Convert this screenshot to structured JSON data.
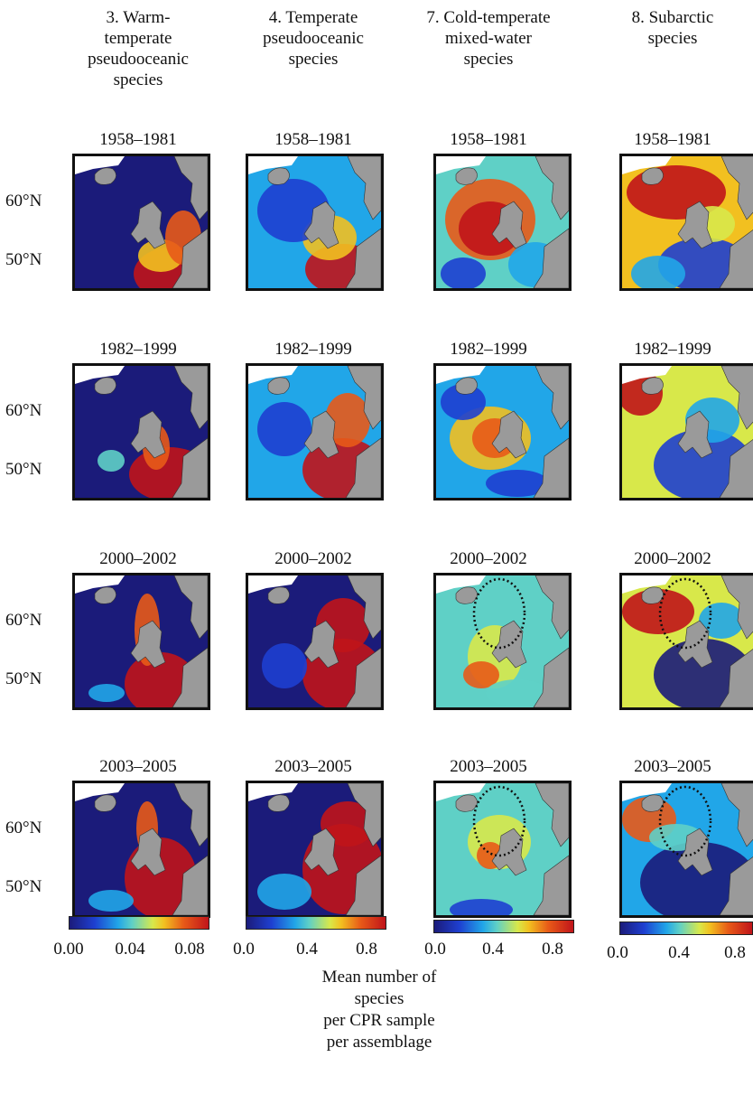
{
  "columns": [
    {
      "header": "3. Warm-\ntemperate\npseudooceanic\nspecies",
      "ticks": [
        "0.00",
        "0.04",
        "0.08"
      ]
    },
    {
      "header": "4. Temperate\npseudooceanic\nspecies",
      "ticks": [
        "0.0",
        "0.4",
        "0.8"
      ]
    },
    {
      "header": "7. Cold-temperate\nmixed-water\nspecies",
      "ticks": [
        "0.0",
        "0.4",
        "0.8"
      ]
    },
    {
      "header": "8. Subarctic\nspecies",
      "ticks": [
        "0.0",
        "0.4",
        "0.8"
      ]
    }
  ],
  "periods": [
    "1958–1981",
    "1982–1999",
    "2000–2002",
    "2003–2005"
  ],
  "latitudes": [
    "60°N",
    "50°N"
  ],
  "legend_label": "Mean number of\nspecies\nper CPR sample\nper assemblage",
  "colormap": [
    "#1b1b7a",
    "#1e3fd0",
    "#21a6e8",
    "#5fd0c6",
    "#d8e84a",
    "#f2c020",
    "#e85a18",
    "#c0141a"
  ],
  "land_color": "#9a9a9a"
}
